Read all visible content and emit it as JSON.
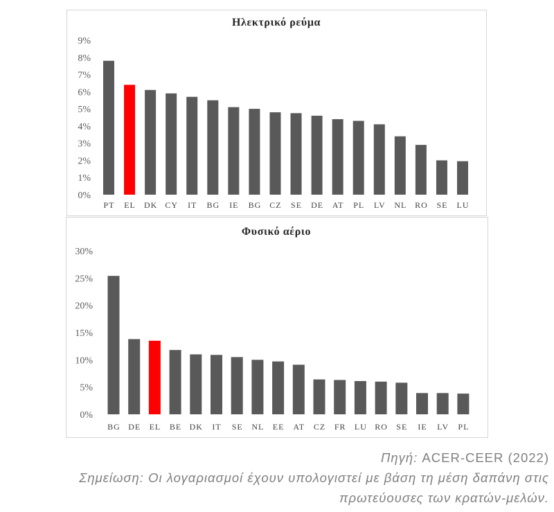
{
  "chart_data": [
    {
      "type": "bar",
      "title": "Ηλεκτρικό ρεύμα",
      "categories": [
        "PT",
        "EL",
        "DK",
        "CY",
        "IT",
        "BG",
        "IE",
        "BG",
        "CZ",
        "SE",
        "DE",
        "AT",
        "PL",
        "LV",
        "NL",
        "RO",
        "SE",
        "LU"
      ],
      "values": [
        7.8,
        6.4,
        6.1,
        5.9,
        5.7,
        5.5,
        5.1,
        5.0,
        4.8,
        4.75,
        4.6,
        4.4,
        4.3,
        4.1,
        3.4,
        2.9,
        2.0,
        1.95
      ],
      "ylim": [
        0,
        9
      ],
      "yticks": [
        0,
        1,
        2,
        3,
        4,
        5,
        6,
        7,
        8,
        9
      ],
      "ytick_labels": [
        "0%",
        "1%",
        "2%",
        "3%",
        "4%",
        "5%",
        "6%",
        "7%",
        "8%",
        "9%"
      ],
      "grid": false,
      "legend": null,
      "bar_color": "#595959",
      "highlight_index": 1,
      "highlight_color": "#ff0000"
    },
    {
      "type": "bar",
      "title": "Φυσικό αέριο",
      "categories": [
        "BG",
        "DE",
        "EL",
        "BE",
        "DK",
        "IT",
        "SE",
        "NL",
        "EE",
        "AT",
        "CZ",
        "FR",
        "LU",
        "RO",
        "SE",
        "IE",
        "LV",
        "PL"
      ],
      "values": [
        25.4,
        13.8,
        13.5,
        11.8,
        11.0,
        10.9,
        10.5,
        10.0,
        9.7,
        9.1,
        6.4,
        6.3,
        6.1,
        6.0,
        5.8,
        3.9,
        3.9,
        3.8
      ],
      "ylim": [
        0,
        30
      ],
      "yticks": [
        0,
        5,
        10,
        15,
        20,
        25,
        30
      ],
      "ytick_labels": [
        "0%",
        "5%",
        "10%",
        "15%",
        "20%",
        "25%",
        "30%"
      ],
      "grid": false,
      "legend": null,
      "bar_color": "#595959",
      "highlight_index": 2,
      "highlight_color": "#ff0000"
    }
  ],
  "notes": {
    "source_label": "Πηγή:",
    "source_value": "ACER-CEER (2022)",
    "note_line1": "Σημείωση: Οι λογαριασμοί έχουν υπολογιστεί με βάση τη μέση δαπάνη στις",
    "note_line2": "πρωτεύουσες των κρατών-μελών."
  }
}
